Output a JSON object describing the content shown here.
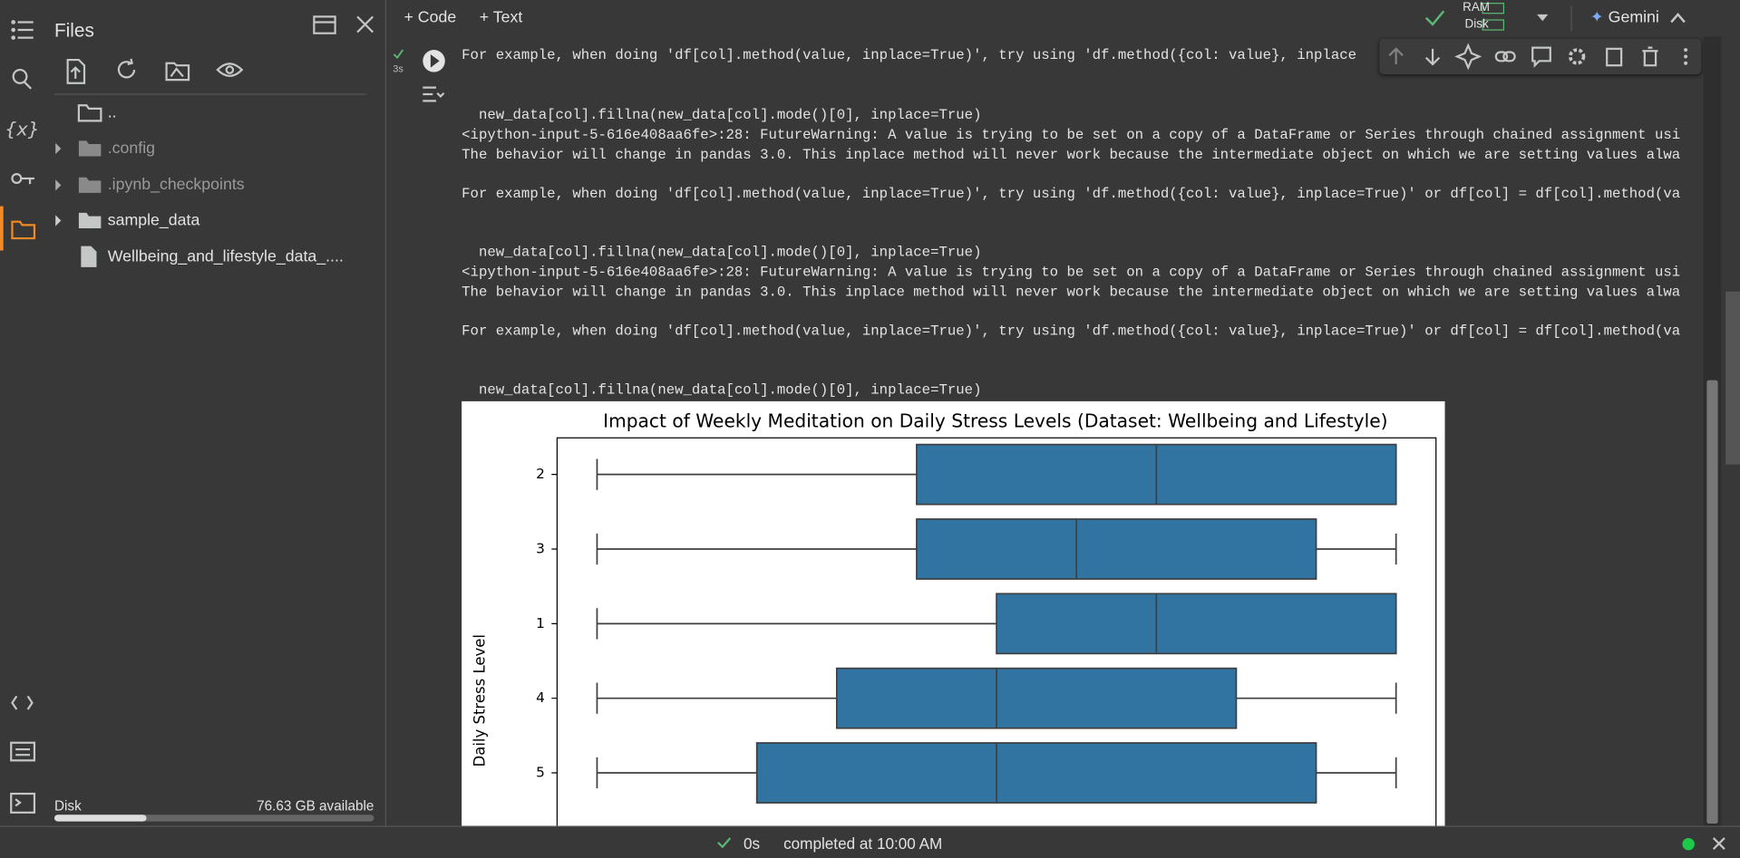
{
  "sidebar": {
    "title": "Files",
    "files": [
      "..",
      ".config",
      ".ipynb_checkpoints",
      "sample_data",
      "Wellbeing_and_lifestyle_data_...."
    ],
    "disk_label": "Disk",
    "disk_available": "76.63 GB available"
  },
  "toolbar": {
    "add_code": "Code",
    "add_text": "Text",
    "ram": "RAM",
    "disk": "Disk",
    "gemini": "Gemini"
  },
  "cell": {
    "run_time": "3s",
    "output_lines": [
      "For example, when doing 'df[col].method(value, inplace=True)', try using 'df.method({col: value}, inplace",
      "  new_data[col].fillna(new_data[col].mode()[0], inplace=True)",
      "<ipython-input-5-616e408aa6fe>:28: FutureWarning: A value is trying to be set on a copy of a DataFrame or Series through chained assignment usi",
      "The behavior will change in pandas 3.0. This inplace method will never work because the intermediate object on which we are setting values alwa",
      "For example, when doing 'df[col].method(value, inplace=True)', try using 'df.method({col: value}, inplace=True)' or df[col] = df[col].method(va",
      "  new_data[col].fillna(new_data[col].mode()[0], inplace=True)",
      "<ipython-input-5-616e408aa6fe>:28: FutureWarning: A value is trying to be set on a copy of a DataFrame or Series through chained assignment usi",
      "The behavior will change in pandas 3.0. This inplace method will never work because the intermediate object on which we are setting values alwa",
      "For example, when doing 'df[col].method(value, inplace=True)', try using 'df.method({col: value}, inplace=True)' or df[col] = df[col].method(va",
      "  new_data[col].fillna(new_data[col].mode()[0], inplace=True)"
    ]
  },
  "chart_data": {
    "type": "box",
    "title": "Impact of Weekly Meditation on Daily Stress Levels (Dataset: Wellbeing and Lifestyle)",
    "ylabel": "Daily Stress Level",
    "categories": [
      "2",
      "3",
      "1",
      "4",
      "5"
    ],
    "color": "#3274a1",
    "boxes": [
      {
        "min": 0,
        "q1": 4,
        "median": 7,
        "q3": 10,
        "max": 10
      },
      {
        "min": 0,
        "q1": 4,
        "median": 6,
        "q3": 9,
        "max": 10
      },
      {
        "min": 0,
        "q1": 5,
        "median": 7,
        "q3": 10,
        "max": 10
      },
      {
        "min": 0,
        "q1": 3,
        "median": 5,
        "q3": 8,
        "max": 10
      },
      {
        "min": 0,
        "q1": 2,
        "median": 5,
        "q3": 9,
        "max": 10
      }
    ],
    "xlim": [
      -0.5,
      10.5
    ]
  },
  "status": {
    "elapsed": "0s",
    "completed": "completed at 10:00 AM"
  }
}
